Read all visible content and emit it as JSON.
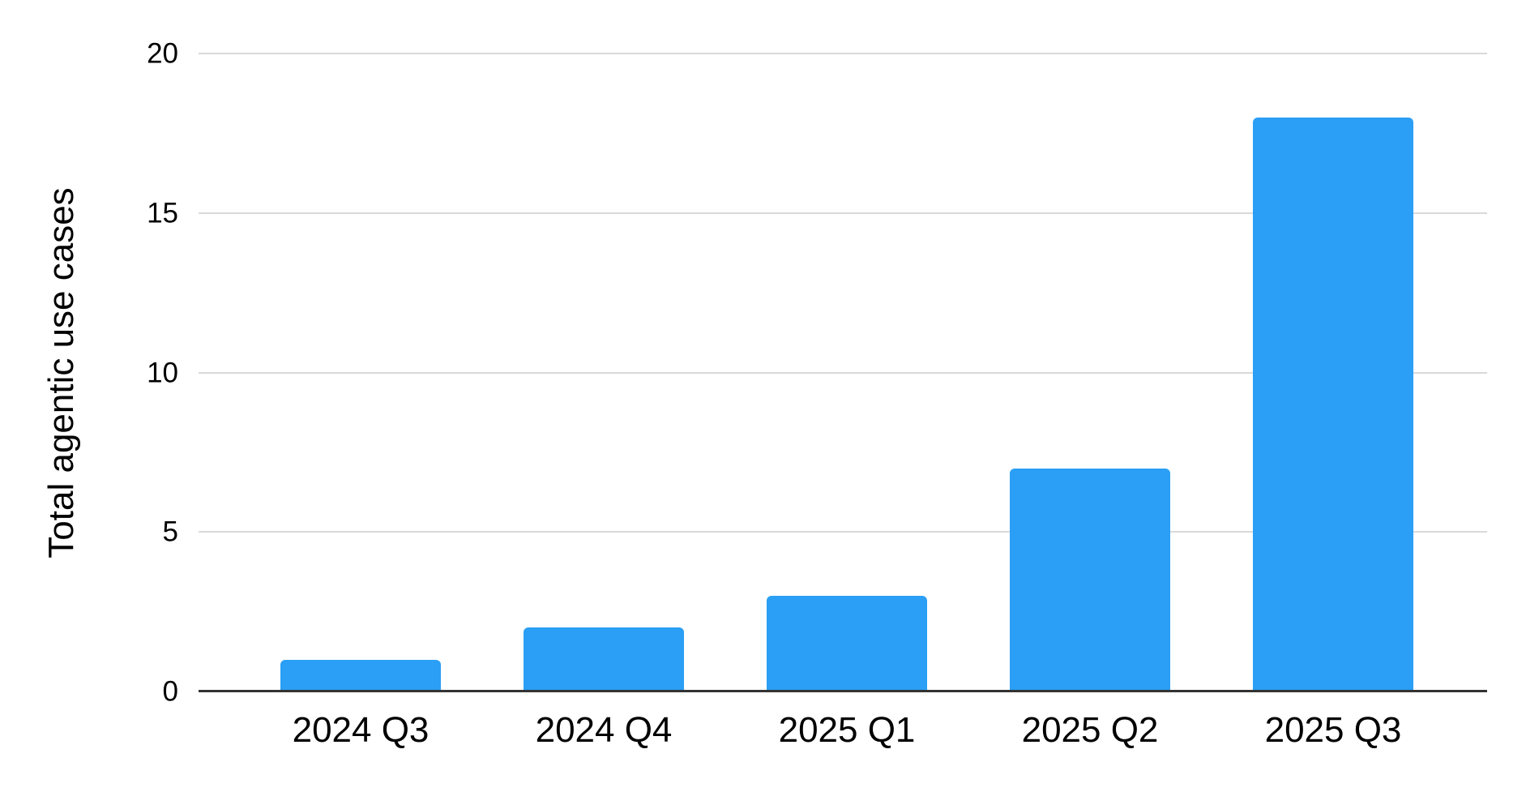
{
  "chart_data": {
    "type": "bar",
    "categories": [
      "2024 Q3",
      "2024 Q4",
      "2025 Q1",
      "2025 Q2",
      "2025 Q3"
    ],
    "values": [
      1,
      2,
      3,
      7,
      18
    ],
    "title": "",
    "xlabel": "",
    "ylabel": "Total agentic use cases",
    "ylim": [
      0,
      20
    ],
    "yticks": [
      0,
      5,
      10,
      15,
      20
    ],
    "grid": "horizontal",
    "legend": "none",
    "colors": {
      "bar": "#2a9ff5",
      "gridline": "#d9d9d9",
      "axis_line": "#333333",
      "text": "#000000",
      "background": "#ffffff"
    }
  }
}
